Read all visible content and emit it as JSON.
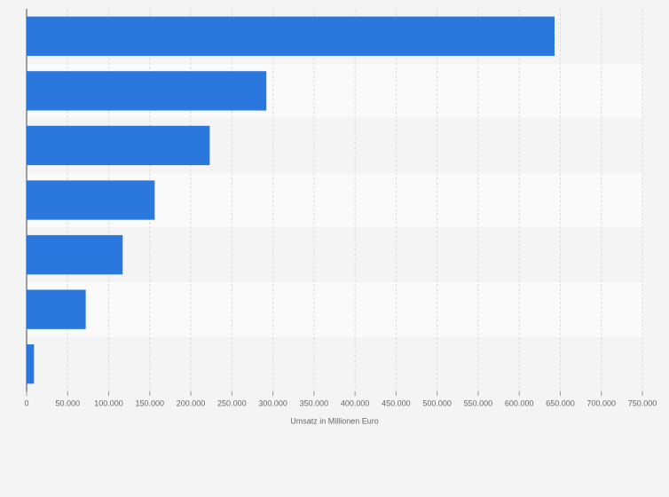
{
  "chart_data": {
    "type": "barh",
    "categories": [
      null,
      null,
      null,
      null,
      null,
      null,
      null
    ],
    "values": [
      643000,
      292000,
      223000,
      156000,
      117000,
      72000,
      9000
    ],
    "color": "#2a77dd",
    "xlabel": "Umsatz in Millionen Euro",
    "xlim": [
      0,
      750000
    ],
    "xticks": [
      0,
      {
        "value": 50000,
        "label": "50.000"
      },
      {
        "value": 100000,
        "label": "100.000"
      },
      {
        "value": 150000,
        "label": "150.000"
      },
      {
        "value": 200000,
        "label": "200.000"
      },
      {
        "value": 250000,
        "label": "250.000"
      },
      {
        "value": 300000,
        "label": "300.000"
      },
      {
        "value": 350000,
        "label": "350.000"
      },
      {
        "value": 400000,
        "label": "400.000"
      },
      {
        "value": 450000,
        "label": "450.000"
      },
      {
        "value": 500000,
        "label": "500.000"
      },
      {
        "value": 550000,
        "label": "550.000"
      },
      {
        "value": 600000,
        "label": "600.000"
      },
      {
        "value": 650000,
        "label": "650.000"
      },
      {
        "value": 700000,
        "label": "700.000"
      },
      {
        "value": 750000,
        "label": "750.000"
      }
    ],
    "grid": true
  }
}
